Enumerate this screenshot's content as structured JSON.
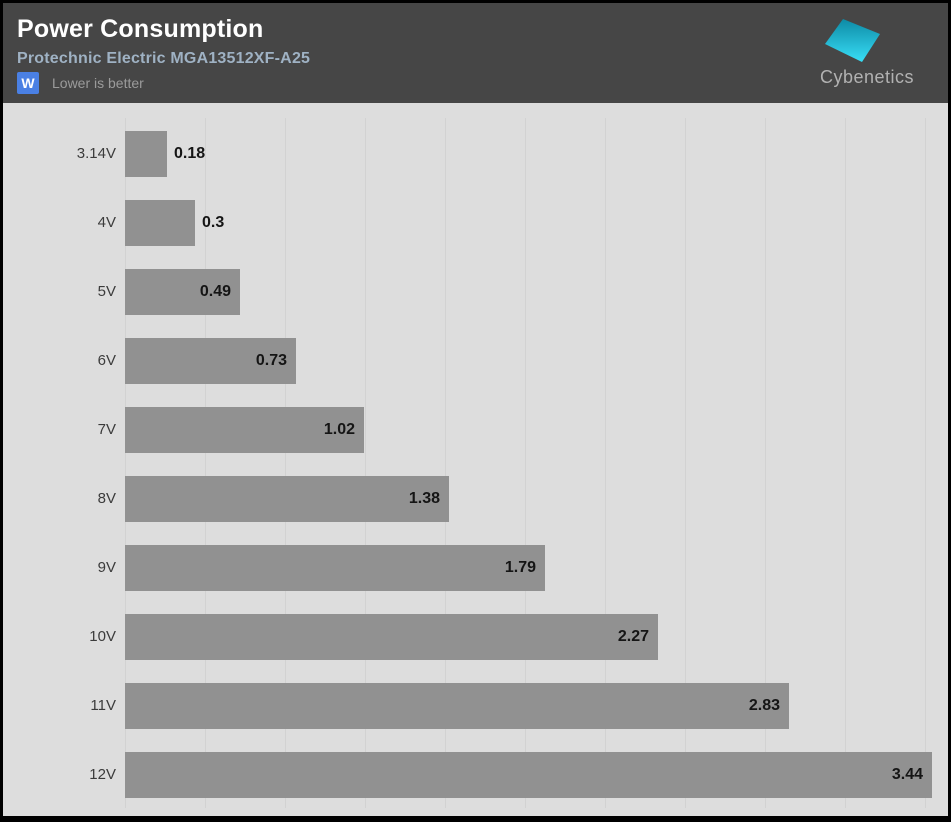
{
  "header": {
    "title": "Power Consumption",
    "subtitle": "Protechnic Electric MGA13512XF-A25",
    "unit_badge": "W",
    "note": "Lower is better",
    "brand": "Cybenetics"
  },
  "colors": {
    "header_bg": "#464646",
    "title_text": "#ffffff",
    "subtitle_text": "#9fb2c4",
    "badge_bg": "#4a80e4",
    "note_text": "#9b9b9b",
    "chart_bg": "#dddddd",
    "gridline": "#d2d2d2",
    "bar": "#919191",
    "category_label": "#3b3b3b",
    "value_label": "#151515",
    "brand_text": "#b2b2b2",
    "logo_top": "#0d8aa5",
    "logo_bottom": "#38dff7"
  },
  "chart_data": {
    "type": "bar",
    "orientation": "horizontal",
    "title": "Power Consumption",
    "subtitle": "Protechnic Electric MGA13512XF-A25",
    "unit": "W",
    "note": "Lower is better",
    "legend": "none",
    "grid": true,
    "gridline_count": 11,
    "xlim": [
      0,
      3.44
    ],
    "categories": [
      "3.14V",
      "4V",
      "5V",
      "6V",
      "7V",
      "8V",
      "9V",
      "10V",
      "11V",
      "12V"
    ],
    "values": [
      0.18,
      0.3,
      0.49,
      0.73,
      1.02,
      1.38,
      1.79,
      2.27,
      2.83,
      3.44
    ],
    "value_labels": [
      "0.18",
      "0.3",
      "0.49",
      "0.73",
      "1.02",
      "1.38",
      "1.79",
      "2.27",
      "2.83",
      "3.44"
    ]
  }
}
